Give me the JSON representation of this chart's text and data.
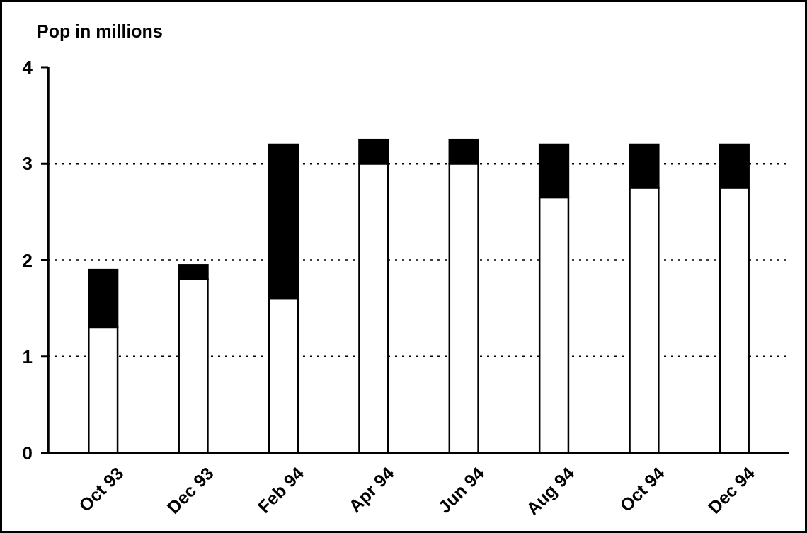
{
  "chart_data": {
    "type": "bar",
    "ylabel": "Pop in millions",
    "categories": [
      "Oct 93",
      "Dec 93",
      "Feb 94",
      "Apr 94",
      "Jun 94",
      "Aug 94",
      "Oct 94",
      "Dec 94"
    ],
    "stacked": true,
    "series": [
      {
        "color": "#ffffff",
        "values": [
          1.3,
          1.8,
          1.6,
          3.0,
          3.0,
          2.65,
          2.75,
          2.75
        ]
      },
      {
        "color": "#000000",
        "values": [
          0.6,
          0.15,
          1.6,
          0.25,
          0.25,
          0.55,
          0.45,
          0.45
        ]
      }
    ],
    "ylim": [
      0,
      4
    ],
    "yticks": [
      0,
      1,
      2,
      3,
      4
    ],
    "grid": "y"
  }
}
